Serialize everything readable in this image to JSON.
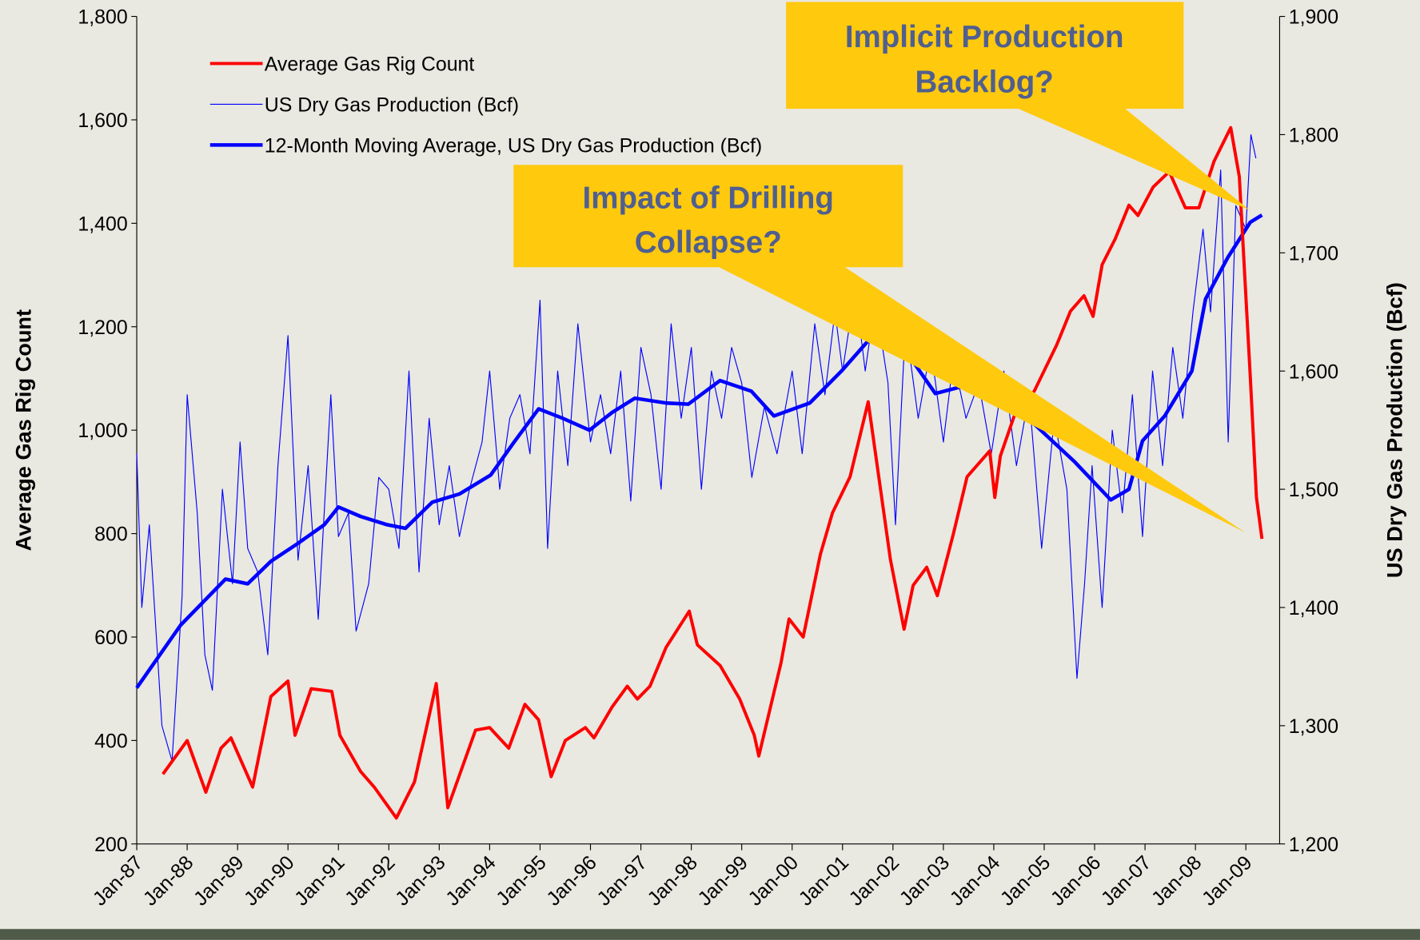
{
  "chart_data": {
    "type": "line",
    "ylabel": "Average Gas Rig Count",
    "y2label": "US Dry Gas Production (Bcf)",
    "xlim": [
      1987,
      2009.67
    ],
    "xticks": [
      {
        "value": 1987,
        "label": "Jan-87"
      },
      {
        "value": 1988,
        "label": "Jan-88"
      },
      {
        "value": 1989,
        "label": "Jan-89"
      },
      {
        "value": 1990,
        "label": "Jan-90"
      },
      {
        "value": 1991,
        "label": "Jan-91"
      },
      {
        "value": 1992,
        "label": "Jan-92"
      },
      {
        "value": 1993,
        "label": "Jan-93"
      },
      {
        "value": 1994,
        "label": "Jan-94"
      },
      {
        "value": 1995,
        "label": "Jan-95"
      },
      {
        "value": 1996,
        "label": "Jan-96"
      },
      {
        "value": 1997,
        "label": "Jan-97"
      },
      {
        "value": 1998,
        "label": "Jan-98"
      },
      {
        "value": 1999,
        "label": "Jan-99"
      },
      {
        "value": 2000,
        "label": "Jan-00"
      },
      {
        "value": 2001,
        "label": "Jan-01"
      },
      {
        "value": 2002,
        "label": "Jan-02"
      },
      {
        "value": 2003,
        "label": "Jan-03"
      },
      {
        "value": 2004,
        "label": "Jan-04"
      },
      {
        "value": 2005,
        "label": "Jan-05"
      },
      {
        "value": 2006,
        "label": "Jan-06"
      },
      {
        "value": 2007,
        "label": "Jan-07"
      },
      {
        "value": 2008,
        "label": "Jan-08"
      },
      {
        "value": 2009,
        "label": "Jan-09"
      }
    ],
    "ylim": [
      200,
      1800
    ],
    "yticks": [
      200,
      400,
      600,
      800,
      {
        "value": 1000,
        "label": "1,000"
      },
      {
        "value": 1200,
        "label": "1,200"
      },
      {
        "value": 1400,
        "label": "1,400"
      },
      {
        "value": 1600,
        "label": "1,600"
      },
      {
        "value": 1800,
        "label": "1,800"
      }
    ],
    "y2lim": [
      1200,
      1900
    ],
    "y2ticks": [
      {
        "value": 1200,
        "label": "1,200"
      },
      {
        "value": 1300,
        "label": "1,300"
      },
      {
        "value": 1400,
        "label": "1,400"
      },
      {
        "value": 1500,
        "label": "1,500"
      },
      {
        "value": 1600,
        "label": "1,600"
      },
      {
        "value": 1700,
        "label": "1,700"
      },
      {
        "value": 1800,
        "label": "1,800"
      },
      {
        "value": 1900,
        "label": "1,900"
      }
    ],
    "legend": "upper left",
    "series": [
      {
        "name": "Average Gas Rig Count",
        "color": "#ff0000",
        "width": 3.5,
        "x": [
          1987.52,
          1988.0,
          1988.37,
          1988.67,
          1988.87,
          1989.3,
          1989.66,
          1990.0,
          1990.14,
          1990.46,
          1990.87,
          1991.03,
          1991.44,
          1991.71,
          1992.15,
          1992.51,
          1992.94,
          1993.17,
          1993.72,
          1994.0,
          1994.38,
          1994.7,
          1994.97,
          1995.22,
          1995.5,
          1995.9,
          1996.07,
          1996.43,
          1996.73,
          1996.93,
          1997.18,
          1997.5,
          1997.96,
          1998.12,
          1998.57,
          1998.96,
          1999.25,
          1999.34,
          1999.78,
          1999.94,
          2000.22,
          2000.56,
          2000.8,
          2001.15,
          2001.51,
          2001.95,
          2002.22,
          2002.4,
          2002.67,
          2002.88,
          2003.2,
          2003.47,
          2003.92,
          2004.02,
          2004.13,
          2004.45,
          2004.8,
          2005.25,
          2005.52,
          2005.79,
          2005.97,
          2006.15,
          2006.41,
          2006.68,
          2006.86,
          2007.16,
          2007.48,
          2007.8,
          2008.07,
          2008.37,
          2008.7,
          2008.87,
          2009.09,
          2009.21,
          2009.32
        ],
        "values": [
          335,
          400,
          300,
          385,
          405,
          310,
          485,
          515,
          410,
          500,
          495,
          410,
          340,
          310,
          250,
          320,
          510,
          270,
          420,
          425,
          385,
          470,
          440,
          330,
          400,
          425,
          405,
          465,
          505,
          480,
          505,
          580,
          650,
          585,
          545,
          480,
          410,
          370,
          550,
          635,
          600,
          760,
          840,
          910,
          1055,
          750,
          615,
          700,
          735,
          680,
          800,
          910,
          960,
          870,
          950,
          1040,
          1075,
          1165,
          1230,
          1260,
          1220,
          1320,
          1370,
          1435,
          1415,
          1470,
          1500,
          1430,
          1430,
          1520,
          1585,
          1490,
          1100,
          870,
          790
        ]
      },
      {
        "name": "US Dry Gas Production (Bcf)",
        "color": "#0000ff",
        "width": 1,
        "axis": "y2",
        "x": [
          1987.0,
          1987.1,
          1987.25,
          1987.5,
          1987.7,
          1987.9,
          1988.0,
          1988.2,
          1988.35,
          1988.5,
          1988.7,
          1988.9,
          1989.05,
          1989.2,
          1989.4,
          1989.6,
          1989.8,
          1990.0,
          1990.2,
          1990.4,
          1990.6,
          1990.85,
          1991.0,
          1991.2,
          1991.35,
          1991.6,
          1991.8,
          1992.0,
          1992.2,
          1992.4,
          1992.6,
          1992.8,
          1993.0,
          1993.2,
          1993.4,
          1993.6,
          1993.85,
          1994.0,
          1994.2,
          1994.4,
          1994.6,
          1994.8,
          1995.0,
          1995.15,
          1995.35,
          1995.55,
          1995.75,
          1996.0,
          1996.2,
          1996.4,
          1996.6,
          1996.8,
          1997.0,
          1997.2,
          1997.4,
          1997.6,
          1997.8,
          1998.0,
          1998.2,
          1998.4,
          1998.6,
          1998.8,
          1999.0,
          1999.2,
          1999.45,
          1999.7,
          2000.0,
          2000.2,
          2000.45,
          2000.65,
          2000.85,
          2001.0,
          2001.25,
          2001.45,
          2001.65,
          2001.9,
          2002.05,
          2002.25,
          2002.5,
          2002.75,
          2003.0,
          2003.2,
          2003.45,
          2003.7,
          2003.95,
          2004.2,
          2004.45,
          2004.7,
          2004.95,
          2005.2,
          2005.45,
          2005.65,
          2005.8,
          2005.95,
          2006.15,
          2006.35,
          2006.55,
          2006.75,
          2006.95,
          2007.15,
          2007.35,
          2007.55,
          2007.75,
          2007.95,
          2008.15,
          2008.3,
          2008.5,
          2008.65,
          2008.8,
          2009.0,
          2009.1,
          2009.2
        ],
        "values": [
          1530,
          1400,
          1470,
          1300,
          1270,
          1410,
          1580,
          1480,
          1360,
          1330,
          1500,
          1420,
          1540,
          1450,
          1430,
          1360,
          1520,
          1630,
          1440,
          1520,
          1390,
          1580,
          1460,
          1480,
          1380,
          1420,
          1510,
          1500,
          1450,
          1600,
          1430,
          1560,
          1470,
          1520,
          1460,
          1500,
          1540,
          1600,
          1500,
          1560,
          1580,
          1530,
          1660,
          1450,
          1600,
          1520,
          1640,
          1540,
          1580,
          1530,
          1600,
          1490,
          1620,
          1580,
          1500,
          1640,
          1560,
          1620,
          1500,
          1600,
          1560,
          1620,
          1590,
          1510,
          1570,
          1530,
          1600,
          1530,
          1640,
          1580,
          1650,
          1600,
          1670,
          1600,
          1660,
          1590,
          1470,
          1640,
          1560,
          1620,
          1540,
          1610,
          1560,
          1590,
          1530,
          1600,
          1520,
          1580,
          1450,
          1560,
          1500,
          1340,
          1420,
          1520,
          1400,
          1550,
          1480,
          1580,
          1460,
          1600,
          1520,
          1620,
          1560,
          1650,
          1720,
          1650,
          1770,
          1540,
          1740,
          1720,
          1800,
          1780
        ]
      },
      {
        "name": "12-Month Moving Average, US Dry Gas Production (Bcf)",
        "color": "#0000ff",
        "width": 4,
        "axis": "y2",
        "x": [
          1987.0,
          1987.87,
          1988.76,
          1989.2,
          1989.66,
          1990.19,
          1990.72,
          1991.0,
          1991.44,
          1991.97,
          1992.33,
          1992.86,
          1993.4,
          1994.02,
          1994.47,
          1994.97,
          1995.45,
          1995.98,
          1996.43,
          1996.88,
          1997.5,
          1997.94,
          1998.57,
          1999.19,
          1999.64,
          2000.35,
          2000.98,
          2001.6,
          2001.95,
          2002.4,
          2002.84,
          2003.47,
          2003.92,
          2004.63,
          2005.61,
          2006.32,
          2006.68,
          2006.95,
          2007.39,
          2007.93,
          2008.2,
          2008.64,
          2009.09,
          2009.32
        ],
        "values": [
          1332,
          1385,
          1424,
          1420,
          1439,
          1454,
          1470,
          1485,
          1477,
          1470,
          1467,
          1489,
          1496,
          1512,
          1539,
          1568,
          1560,
          1550,
          1565,
          1577,
          1573,
          1572,
          1592,
          1583,
          1562,
          1573,
          1600,
          1630,
          1623,
          1608,
          1581,
          1588,
          1577,
          1562,
          1523,
          1491,
          1500,
          1541,
          1562,
          1600,
          1661,
          1696,
          1726,
          1732
        ]
      }
    ],
    "annotations": [
      {
        "lines": [
          "Implicit Production",
          "Backlog?"
        ]
      },
      {
        "lines": [
          "Impact of Drilling",
          "Collapse?"
        ]
      }
    ]
  }
}
